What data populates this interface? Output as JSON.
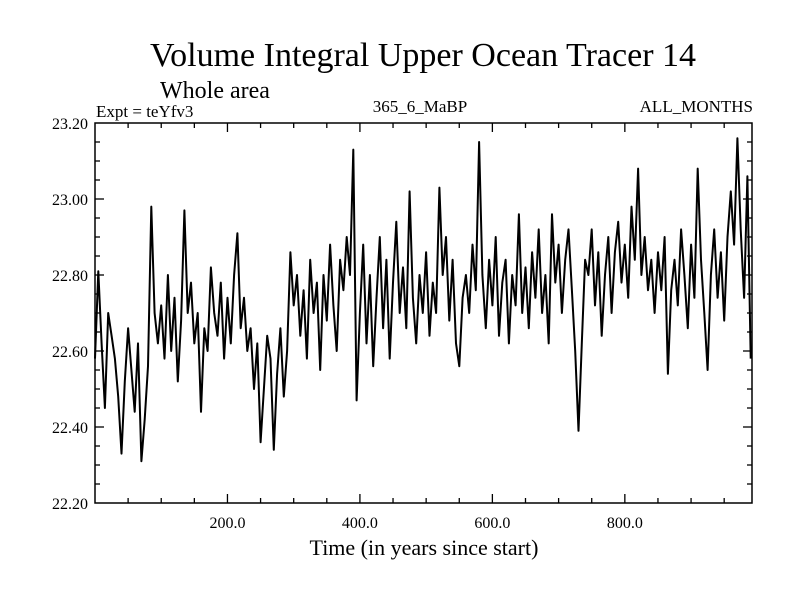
{
  "chart_data": {
    "type": "line",
    "title": "Volume Integral Upper Ocean Tracer 14",
    "subtitle": "Whole area",
    "annotations": {
      "left": "Expt = teYfv3",
      "center": "365_6_MaBP",
      "right": "ALL_MONTHS"
    },
    "xlabel": "Time (in years since start)",
    "ylabel": "",
    "xlim": [
      0,
      992
    ],
    "ylim": [
      22.2,
      23.2
    ],
    "x_ticks": [
      200,
      400,
      600,
      800
    ],
    "x_tick_labels": [
      "200.0",
      "400.0",
      "600.0",
      "800.0"
    ],
    "x_minor_step": 50,
    "y_ticks": [
      22.2,
      22.4,
      22.6,
      22.8,
      23.0,
      23.2
    ],
    "y_tick_labels": [
      "22.20",
      "22.40",
      "22.60",
      "22.80",
      "23.00",
      "23.20"
    ],
    "y_minor_step": 0.05,
    "grid": false,
    "line_color": "#000000",
    "series": [
      {
        "name": "Volume Integral Upper Ocean Tracer 14",
        "x_start": 0,
        "x_step": 5,
        "values": [
          22.58,
          22.81,
          22.62,
          22.45,
          22.7,
          22.64,
          22.58,
          22.48,
          22.33,
          22.52,
          22.66,
          22.55,
          22.44,
          22.62,
          22.31,
          22.42,
          22.56,
          22.98,
          22.7,
          22.62,
          22.72,
          22.58,
          22.8,
          22.6,
          22.74,
          22.52,
          22.68,
          22.97,
          22.7,
          22.78,
          22.62,
          22.7,
          22.44,
          22.66,
          22.6,
          22.82,
          22.7,
          22.64,
          22.78,
          22.58,
          22.74,
          22.62,
          22.8,
          22.91,
          22.66,
          22.74,
          22.6,
          22.66,
          22.5,
          22.62,
          22.36,
          22.5,
          22.64,
          22.58,
          22.34,
          22.54,
          22.66,
          22.48,
          22.6,
          22.86,
          22.72,
          22.8,
          22.64,
          22.76,
          22.58,
          22.84,
          22.7,
          22.78,
          22.55,
          22.8,
          22.68,
          22.88,
          22.72,
          22.6,
          22.84,
          22.76,
          22.9,
          22.8,
          23.13,
          22.47,
          22.7,
          22.88,
          22.62,
          22.8,
          22.56,
          22.74,
          22.9,
          22.66,
          22.84,
          22.58,
          22.78,
          22.94,
          22.7,
          22.82,
          22.66,
          23.02,
          22.74,
          22.62,
          22.8,
          22.7,
          22.86,
          22.64,
          22.78,
          22.7,
          23.03,
          22.8,
          22.9,
          22.68,
          22.84,
          22.62,
          22.56,
          22.74,
          22.8,
          22.7,
          22.88,
          22.76,
          23.15,
          22.8,
          22.66,
          22.84,
          22.72,
          22.9,
          22.64,
          22.78,
          22.84,
          22.62,
          22.8,
          22.72,
          22.96,
          22.7,
          22.82,
          22.66,
          22.86,
          22.74,
          22.92,
          22.7,
          22.8,
          22.62,
          22.96,
          22.78,
          22.88,
          22.7,
          22.84,
          22.92,
          22.76,
          22.6,
          22.39,
          22.62,
          22.84,
          22.8,
          22.92,
          22.72,
          22.86,
          22.64,
          22.8,
          22.9,
          22.7,
          22.86,
          22.94,
          22.78,
          22.88,
          22.74,
          22.98,
          22.84,
          23.08,
          22.8,
          22.9,
          22.76,
          22.84,
          22.7,
          22.86,
          22.76,
          22.9,
          22.54,
          22.76,
          22.84,
          22.72,
          22.92,
          22.8,
          22.66,
          22.88,
          22.74,
          23.08,
          22.84,
          22.7,
          22.55,
          22.8,
          22.92,
          22.74,
          22.86,
          22.68,
          22.9,
          23.02,
          22.88,
          23.16,
          22.92,
          22.74,
          23.06,
          22.58
        ]
      }
    ]
  }
}
